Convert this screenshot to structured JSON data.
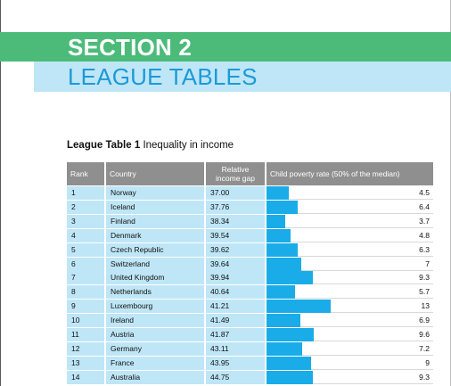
{
  "section": {
    "number_label": "SECTION 2",
    "title": "LEAGUE TABLES"
  },
  "table": {
    "caption_bold": "League Table 1",
    "caption_rest": "Inequality in income",
    "headers": {
      "rank": "Rank",
      "country": "Country",
      "gap_line1": "Relative",
      "gap_line2": "income gap",
      "poverty": "Child poverty rate (50% of the median)"
    },
    "colors": {
      "header_bg": "#8f8f8f",
      "row_bg": "#bfe6f7",
      "bar": "#1aace8"
    },
    "rows": [
      {
        "rank": "1",
        "country": "Norway",
        "gap": "37.00",
        "poverty": "4.5"
      },
      {
        "rank": "2",
        "country": "Iceland",
        "gap": "37.76",
        "poverty": "6.4"
      },
      {
        "rank": "3",
        "country": "Finland",
        "gap": "38.34",
        "poverty": "3.7"
      },
      {
        "rank": "4",
        "country": "Denmark",
        "gap": "39.54",
        "poverty": "4.8"
      },
      {
        "rank": "5",
        "country": "Czech Republic",
        "gap": "39.62",
        "poverty": "6.3"
      },
      {
        "rank": "6",
        "country": "Switzerland",
        "gap": "39.64",
        "poverty": "7"
      },
      {
        "rank": "7",
        "country": "United Kingdom",
        "gap": "39.94",
        "poverty": "9.3"
      },
      {
        "rank": "8",
        "country": "Netherlands",
        "gap": "40.64",
        "poverty": "5.7"
      },
      {
        "rank": "9",
        "country": "Luxembourg",
        "gap": "41.21",
        "poverty": "13"
      },
      {
        "rank": "10",
        "country": "Ireland",
        "gap": "41.49",
        "poverty": "6.9"
      },
      {
        "rank": "11",
        "country": "Austria",
        "gap": "41.87",
        "poverty": "9.6"
      },
      {
        "rank": "12",
        "country": "Germany",
        "gap": "43.11",
        "poverty": "7.2"
      },
      {
        "rank": "13",
        "country": "France",
        "gap": "43.95",
        "poverty": "9"
      },
      {
        "rank": "14",
        "country": "Australia",
        "gap": "44.75",
        "poverty": "9.3"
      }
    ]
  }
}
